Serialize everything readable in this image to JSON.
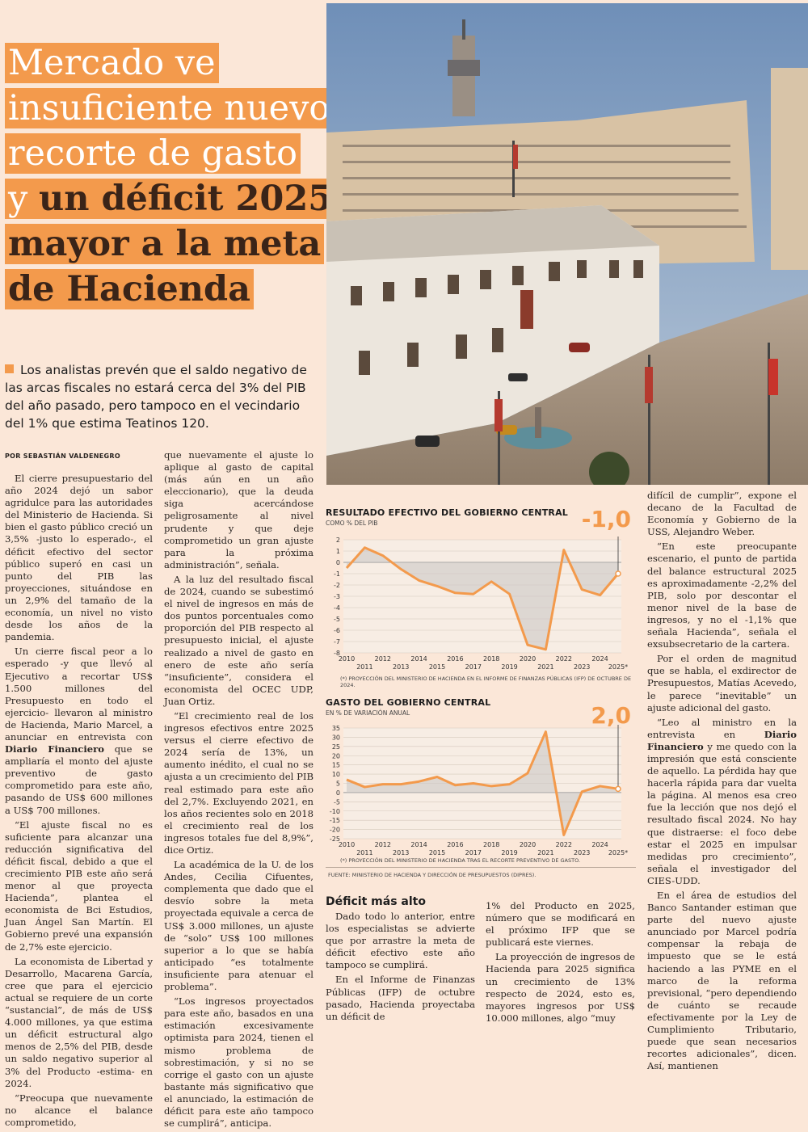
{
  "headline": {
    "lines": [
      {
        "light": "Mercado ve",
        "dark": ""
      },
      {
        "light": "insuficiente nuevo",
        "dark": ""
      },
      {
        "light": "recorte de gasto",
        "dark": ""
      },
      {
        "light": "y ",
        "dark": "un déficit 2025"
      },
      {
        "light": "",
        "dark": "mayor a la meta"
      },
      {
        "light": "",
        "dark": "de Hacienda"
      }
    ]
  },
  "lead": "Los analistas prevén que el saldo negativo de las arcas fiscales no estará cerca del 3% del PIB del año pasado, pero tampoco en el vecindario del 1% que estima Teatinos 120.",
  "byline": "POR SEBASTIÁN VALDENEGRO",
  "col1": [
    "El cierre presupuestario del año 2024 dejó un sabor agridulce para las autoridades del Ministerio de Hacienda. Si bien el gasto público creció un 3,5% -justo lo esperado-, el déficit efectivo del sector público superó en casi un punto del PIB las proyecciones, situándose en un 2,9% del tamaño de la economía, un nivel no visto desde los años de la pandemia.",
    "Un cierre fiscal peor a lo esperado -y que llevó al Ejecutivo a recortar US$ 1.500 millones del Presupuesto en todo el ejercicio- llevaron al ministro de Hacienda, Mario Marcel, a anunciar en entrevista con Diario Financiero que se ampliaría el monto del ajuste preventivo de gasto comprometido para este año, pasando de US$ 600 millones a US$ 700 millones.",
    "“El ajuste fiscal no es suficiente para alcanzar una reducción significativa del déficit fiscal, debido a que el crecimiento PIB este año será menor al que proyecta Hacienda”, plantea el economista de Bci Estudios, Juan Ángel San Martín. El Gobierno prevé una expansión de 2,7% este ejercicio.",
    "La economista de Libertad y Desarrollo, Macarena García, cree que para el ejercicio actual se requiere de un corte “sustancial”, de más de US$ 4.000 millones, ya que estima un déficit estructural algo menos de 2,5% del PIB, desde un saldo negativo superior al 3% del Producto -estima- en 2024.",
    "“Preocupa que nuevamente no alcance el balance comprometido,"
  ],
  "col2": [
    "que nuevamente el ajuste lo aplique al gasto de capital (más aún en un año eleccionario), que la deuda siga acercándose peligrosamente al nivel prudente y que deje comprometido un gran ajuste para la próxima administración”, señala.",
    "A la luz del resultado fiscal de 2024, cuando se subestimó el nivel de ingresos en más de dos puntos porcentuales como proporción del PIB respecto al presupuesto inicial, el ajuste realizado a nivel de gasto en enero de este año sería “insuficiente”, considera el economista del OCEC UDP, Juan Ortiz.",
    "“El crecimiento real de los ingresos efectivos entre 2025 versus el cierre efectivo de 2024 sería de 13%, un aumento inédito, el cual no se ajusta a un crecimiento del PIB real estimado para este año del 2,7%. Excluyendo 2021, en los años recientes solo en 2018 el crecimiento real de los ingresos totales fue del 8,9%”, dice Ortiz.",
    "La académica de la U. de los Andes, Cecilia Cifuentes, complementa que dado que el desvío sobre la meta proyectada equivale a cerca de US$ 3.000 millones, un ajuste de “solo” US$ 100 millones superior a lo que se había anticipado “es totalmente insuficiente para atenuar el problema”.",
    "“Los ingresos proyectados para este año, basados en una estimación excesivamente optimista para 2024, tienen el mismo problema de sobrestimación, y si no se corrige el gasto con un ajuste bastante más significativo que el anunciado, la estimación de déficit para este año tampoco se cumplirá”, anticipa."
  ],
  "subhead": "Déficit más alto",
  "col3": [
    "Dado todo lo anterior, entre los especialistas se advierte que por arrastre la meta de déficit efectivo este año tampoco se cumplirá.",
    "En el Informe de Finanzas Públicas (IFP) de octubre pasado, Hacienda proyectaba un déficit de"
  ],
  "col4": [
    "1% del Producto en 2025, número que se modificará en el próximo IFP que se publicará este viernes.",
    "La proyección de ingresos de Hacienda para 2025 significa un crecimiento de 13% respecto de 2024, esto es, mayores ingresos por US$ 10.000 millones, algo “muy"
  ],
  "col5": [
    "difícil de cumplir”, expone el decano de la Facultad de Economía y Gobierno de la USS, Alejandro Weber.",
    "“En este preocupante escenario, el punto de partida del balance estructural 2025 es aproximadamente -2,2% del PIB, solo por descontar el menor nivel de la base de ingresos, y no el -1,1% que señala Hacienda”, señala el exsubsecretario de la cartera.",
    "Por el orden de magnitud que se habla, el exdirector de Presupuestos, Matías Acevedo, le parece “inevitable” un ajuste adicional del gasto.",
    "“Leo al ministro en la entrevista en Diario Financiero y me quedo con la impresión que está consciente de aquello. La pérdida hay que hacerla rápida para dar vuelta la página. Al menos esa creo fue la lección que nos dejó el resultado fiscal 2024. No hay que distraerse: el foco debe estar el 2025 en impulsar medidas pro crecimiento”, señala el investigador del CIES-UDD.",
    "En el área de estudios del Banco Santander estiman que parte del nuevo ajuste anunciado por Marcel podría compensar la rebaja de impuesto que se le está haciendo a las PYME en el marco de la reforma previsional, “pero dependiendo de cuánto se recaude efectivamente por la Ley de Cumplimiento Tributario, puede que sean necesarios recortes adicionales”, dicen. Así, mantienen"
  ],
  "chart_data": [
    {
      "type": "area",
      "title": "RESULTADO EFECTIVO DEL GOBIERNO CENTRAL",
      "subtitle": "COMO % DEL PIB",
      "highlight": "-1,0",
      "note": "(*) PROYECCIÓN DEL MINISTERIO DE HACIENDA EN EL INFORME DE FINANZAS PÚBLICAS (IFP) DE OCTUBRE DE 2024.",
      "x": [
        "2010",
        "2011",
        "2012",
        "2013",
        "2014",
        "2015",
        "2016",
        "2017",
        "2018",
        "2019",
        "2020",
        "2021",
        "2022",
        "2023",
        "2024",
        "2025*"
      ],
      "values": [
        -0.5,
        1.3,
        0.6,
        -0.6,
        -1.6,
        -2.1,
        -2.7,
        -2.8,
        -1.7,
        -2.8,
        -7.3,
        -7.7,
        1.1,
        -2.4,
        -2.9,
        -1.0
      ],
      "ylim": [
        -8,
        2
      ],
      "yticks": [
        2,
        1,
        0,
        -1,
        -2,
        -3,
        -4,
        -5,
        -6,
        -7,
        -8
      ]
    },
    {
      "type": "area",
      "title": "GASTO DEL GOBIERNO CENTRAL",
      "subtitle": "EN % DE VARIACIÓN ANUAL",
      "highlight": "2,0",
      "note": "(*) PROYECCIÓN DEL MINISTERIO DE HACIENDA TRAS EL RECORTE PREVENTIVO DE GASTO.",
      "x": [
        "2010",
        "2011",
        "2012",
        "2013",
        "2014",
        "2015",
        "2016",
        "2017",
        "2018",
        "2019",
        "2020",
        "2021",
        "2022",
        "2023",
        "2024",
        "2025*"
      ],
      "values": [
        7,
        3,
        4.5,
        4.5,
        6,
        8.5,
        4,
        5,
        3.5,
        4.5,
        10.5,
        33,
        -23,
        0.5,
        3.5,
        2.0
      ],
      "ylim": [
        -25,
        35
      ],
      "yticks": [
        35,
        30,
        25,
        20,
        15,
        10,
        5,
        0,
        -5,
        -10,
        -15,
        -20,
        -25
      ]
    }
  ],
  "source": "FUENTE: MINISTERIO DE HACIENDA Y DIRECCIÓN DE PRESUPUESTOS (DIPRES).",
  "colors": {
    "accent": "#f39a4c",
    "background": "#fbe7d8",
    "dark": "#3a2418"
  }
}
